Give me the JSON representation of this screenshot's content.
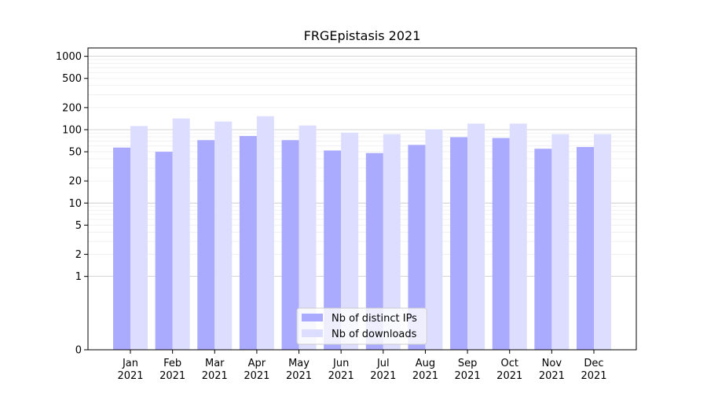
{
  "chart_data": {
    "type": "bar",
    "title": "FRGEpistasis 2021",
    "xlabel": "",
    "ylabel": "",
    "yscale": "symlog",
    "ylim": [
      0,
      1300
    ],
    "yticks": [
      0,
      1,
      2,
      5,
      10,
      20,
      50,
      100,
      200,
      500,
      1000
    ],
    "ytick_labels": [
      "0",
      "1",
      "2",
      "5",
      "10",
      "20",
      "50",
      "100",
      "200",
      "500",
      "1000"
    ],
    "categories": [
      "Jan\n2021",
      "Feb\n2021",
      "Mar\n2021",
      "Apr\n2021",
      "May\n2021",
      "Jun\n2021",
      "Jul\n2021",
      "Aug\n2021",
      "Sep\n2021",
      "Oct\n2021",
      "Nov\n2021",
      "Dec\n2021"
    ],
    "series": [
      {
        "name": "Nb of distinct IPs",
        "color": "#aaaaff",
        "values": [
          57,
          50,
          72,
          82,
          72,
          52,
          48,
          62,
          79,
          77,
          55,
          58
        ]
      },
      {
        "name": "Nb of downloads",
        "color": "#ddddff",
        "values": [
          112,
          142,
          129,
          153,
          114,
          91,
          87,
          101,
          121,
          121,
          87,
          87
        ]
      }
    ],
    "grid": {
      "major": true,
      "minor": true
    },
    "legend": {
      "position": "lower-center"
    }
  }
}
